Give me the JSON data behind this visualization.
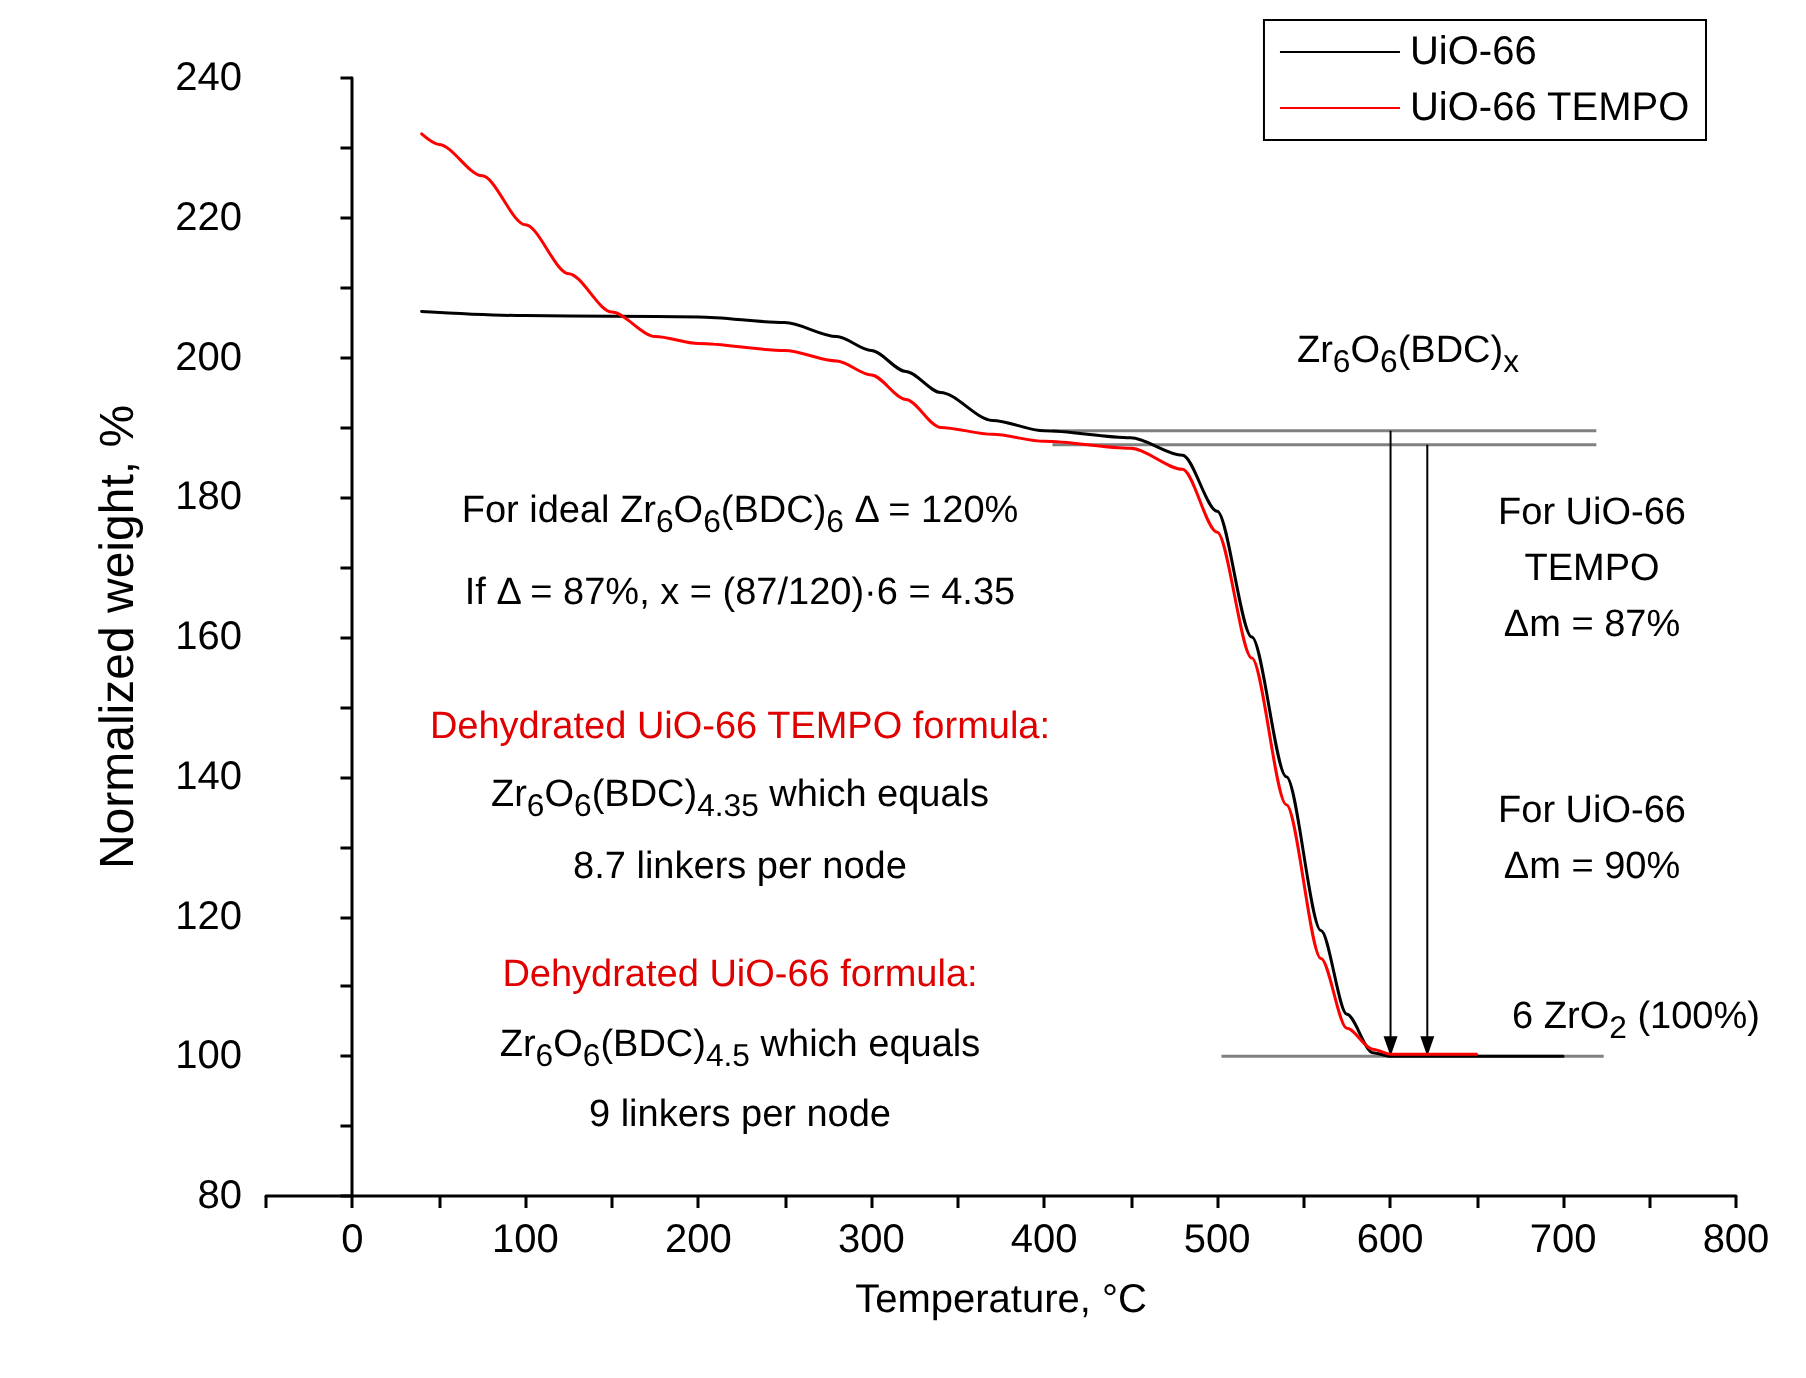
{
  "chart_data": {
    "type": "line",
    "xlabel": "Temperature, °C",
    "ylabel": "Normalized weight, %",
    "xlim": [
      -50,
      800
    ],
    "xticks": [
      {
        "value": -50,
        "label": null
      },
      0,
      {
        "value": 50,
        "label": null
      },
      100,
      {
        "value": 150,
        "label": null
      },
      200,
      {
        "value": 250,
        "label": null
      },
      300,
      {
        "value": 350,
        "label": null
      },
      400,
      {
        "value": 450,
        "label": null
      },
      500,
      {
        "value": 550,
        "label": null
      },
      600,
      {
        "value": 650,
        "label": null
      },
      700,
      {
        "value": 750,
        "label": null
      },
      800
    ],
    "ylim": [
      80,
      240
    ],
    "yticks": [
      80,
      {
        "value": 90,
        "label": null
      },
      100,
      {
        "value": 110,
        "label": null
      },
      120,
      {
        "value": 130,
        "label": null
      },
      140,
      {
        "value": 150,
        "label": null
      },
      160,
      {
        "value": 170,
        "label": null
      },
      180,
      {
        "value": 190,
        "label": null
      },
      200,
      {
        "value": 210,
        "label": null
      },
      220,
      {
        "value": 230,
        "label": null
      },
      240
    ],
    "series": [
      {
        "name": "UiO-66",
        "color": "#000000",
        "x": [
          40,
          100,
          150,
          200,
          250,
          280,
          300,
          320,
          340,
          370,
          400,
          450,
          480,
          500,
          520,
          540,
          560,
          575,
          590,
          600,
          650,
          700
        ],
        "values": [
          206.6,
          206,
          205.9,
          205.8,
          205,
          203,
          201,
          198,
          195,
          191,
          189.5,
          188.5,
          186,
          178,
          160,
          140,
          118,
          106,
          100.5,
          100,
          100,
          100
        ]
      },
      {
        "name": "UiO-66 TEMPO",
        "color": "#ff0000",
        "x": [
          40,
          50,
          75,
          100,
          125,
          150,
          175,
          200,
          250,
          280,
          300,
          320,
          340,
          370,
          400,
          450,
          480,
          500,
          520,
          540,
          560,
          575,
          590,
          600,
          650
        ],
        "values": [
          232,
          230.5,
          226,
          219,
          212,
          206.5,
          203,
          202,
          201,
          199.5,
          197.5,
          194,
          190,
          189,
          188,
          187,
          184,
          175,
          157,
          136,
          114,
          104,
          101,
          100.3,
          100.3
        ]
      }
    ],
    "ref_lines": [
      {
        "axis": "y",
        "value": 189.5,
        "color": "#808080"
      },
      {
        "axis": "y",
        "value": 187.5,
        "color": "#808080"
      },
      {
        "axis": "y",
        "value": 100,
        "color": "#808080"
      }
    ],
    "annotations": [
      "For ideal Zr$_{6}$O$_{6}$(BDC)$_{6}$ Δ = 120%",
      "If Δ = 87%, x = (87/120)·6 = 4.35",
      "Dehydrated UiO-66 TEMPO formula:",
      "Zr$_{6}$O$_{6}$(BDC)$_{4.35}$ which equals",
      "8.7 linkers per node",
      "Dehydrated UiO-66 formula:",
      "Zr$_{6}$O$_{6}$(BDC)$_{4.5}$ which equals",
      "9 linkers per node",
      "Zr$_{6}$O$_{6}$(BDC)$_{x}$",
      "For UiO-66\nTEMPO\nΔm = 87%",
      "For UiO-66\nΔm = 90%",
      "6 ZrO$_{2}$ (100%)"
    ],
    "legend": "top right",
    "marker": "none",
    "line_style": "solid"
  }
}
